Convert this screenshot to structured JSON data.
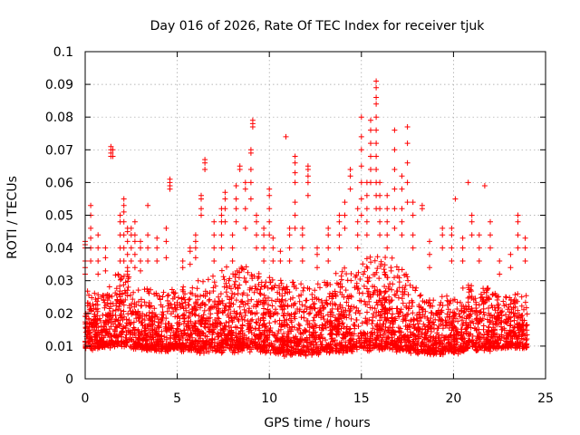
{
  "chart_data": {
    "type": "scatter",
    "title": "Day 016 of 2026, Rate Of TEC Index for receiver tjuk",
    "xlabel": "GPS time / hours",
    "ylabel": "ROTI / TECUs",
    "xlim": [
      0,
      25
    ],
    "ylim": [
      0,
      0.1
    ],
    "x_ticks": [
      0,
      5,
      10,
      15,
      20,
      25
    ],
    "x_tick_labels": [
      "0",
      "5",
      "10",
      "15",
      "20",
      "25"
    ],
    "y_ticks": [
      0,
      0.01,
      0.02,
      0.03,
      0.04,
      0.05,
      0.06,
      0.07,
      0.08,
      0.09,
      0.1
    ],
    "y_tick_labels": [
      "0",
      "0.01",
      "0.02",
      "0.03",
      "0.04",
      "0.05",
      "0.06",
      "0.07",
      "0.08",
      "0.09",
      "0.1"
    ],
    "grid": true,
    "marker": "+",
    "series_color": "#ff0000",
    "dense_band": [
      {
        "t": 0,
        "low": 0.007,
        "high": 0.028
      },
      {
        "t": 1,
        "low": 0.008,
        "high": 0.026
      },
      {
        "t": 2,
        "low": 0.008,
        "high": 0.035
      },
      {
        "t": 3,
        "low": 0.007,
        "high": 0.03
      },
      {
        "t": 4,
        "low": 0.007,
        "high": 0.026
      },
      {
        "t": 5,
        "low": 0.007,
        "high": 0.028
      },
      {
        "t": 6,
        "low": 0.006,
        "high": 0.03
      },
      {
        "t": 7,
        "low": 0.006,
        "high": 0.033
      },
      {
        "t": 8,
        "low": 0.006,
        "high": 0.035
      },
      {
        "t": 9,
        "low": 0.006,
        "high": 0.034
      },
      {
        "t": 10,
        "low": 0.006,
        "high": 0.032
      },
      {
        "t": 11,
        "low": 0.005,
        "high": 0.03
      },
      {
        "t": 12,
        "low": 0.005,
        "high": 0.03
      },
      {
        "t": 13,
        "low": 0.006,
        "high": 0.03
      },
      {
        "t": 14,
        "low": 0.006,
        "high": 0.034
      },
      {
        "t": 15,
        "low": 0.006,
        "high": 0.036
      },
      {
        "t": 16,
        "low": 0.006,
        "high": 0.04
      },
      {
        "t": 17,
        "low": 0.006,
        "high": 0.036
      },
      {
        "t": 18,
        "low": 0.006,
        "high": 0.028
      },
      {
        "t": 19,
        "low": 0.006,
        "high": 0.026
      },
      {
        "t": 20,
        "low": 0.006,
        "high": 0.026
      },
      {
        "t": 21,
        "low": 0.007,
        "high": 0.03
      },
      {
        "t": 22,
        "low": 0.007,
        "high": 0.028
      },
      {
        "t": 23,
        "low": 0.008,
        "high": 0.026
      },
      {
        "t": 24,
        "low": 0.008,
        "high": 0.026
      }
    ],
    "band_points_per_hour": 190,
    "spikes": [
      {
        "x": 0.0,
        "ys": [
          0.032,
          0.034,
          0.036,
          0.04,
          0.041,
          0.042
        ]
      },
      {
        "x": 0.3,
        "ys": [
          0.036,
          0.04,
          0.043,
          0.046,
          0.05,
          0.053
        ]
      },
      {
        "x": 0.7,
        "ys": [
          0.032,
          0.036,
          0.04,
          0.044
        ]
      },
      {
        "x": 1.1,
        "ys": [
          0.033,
          0.037,
          0.04
        ]
      },
      {
        "x": 1.4,
        "ys": [
          0.068,
          0.069,
          0.07,
          0.071
        ]
      },
      {
        "x": 1.5,
        "ys": [
          0.068,
          0.07
        ]
      },
      {
        "x": 1.9,
        "ys": [
          0.036,
          0.04,
          0.044,
          0.048,
          0.05
        ]
      },
      {
        "x": 2.1,
        "ys": [
          0.036,
          0.04,
          0.044,
          0.048,
          0.051,
          0.053,
          0.055
        ]
      },
      {
        "x": 2.3,
        "ys": [
          0.034,
          0.038,
          0.042,
          0.045,
          0.046
        ]
      },
      {
        "x": 2.5,
        "ys": [
          0.036,
          0.04,
          0.044,
          0.046
        ]
      },
      {
        "x": 2.7,
        "ys": [
          0.034,
          0.038,
          0.042,
          0.044,
          0.048
        ]
      },
      {
        "x": 3.0,
        "ys": [
          0.033,
          0.036,
          0.04,
          0.042
        ]
      },
      {
        "x": 3.4,
        "ys": [
          0.036,
          0.04,
          0.044,
          0.053
        ]
      },
      {
        "x": 3.9,
        "ys": [
          0.036,
          0.04,
          0.043
        ]
      },
      {
        "x": 4.4,
        "ys": [
          0.037,
          0.042,
          0.046
        ]
      },
      {
        "x": 4.6,
        "ys": [
          0.058,
          0.059,
          0.06,
          0.061
        ]
      },
      {
        "x": 5.3,
        "ys": [
          0.034,
          0.036
        ]
      },
      {
        "x": 5.7,
        "ys": [
          0.035,
          0.039,
          0.04
        ]
      },
      {
        "x": 6.0,
        "ys": [
          0.037,
          0.04,
          0.042,
          0.044
        ]
      },
      {
        "x": 6.3,
        "ys": [
          0.05,
          0.052,
          0.055,
          0.056
        ]
      },
      {
        "x": 6.5,
        "ys": [
          0.064,
          0.066,
          0.067
        ]
      },
      {
        "x": 7.0,
        "ys": [
          0.036,
          0.04,
          0.044,
          0.048
        ]
      },
      {
        "x": 7.4,
        "ys": [
          0.04,
          0.044,
          0.048,
          0.05,
          0.052
        ]
      },
      {
        "x": 7.6,
        "ys": [
          0.048,
          0.052,
          0.055,
          0.057
        ]
      },
      {
        "x": 8.0,
        "ys": [
          0.036,
          0.04,
          0.044
        ]
      },
      {
        "x": 8.2,
        "ys": [
          0.048,
          0.052,
          0.055,
          0.059
        ]
      },
      {
        "x": 8.4,
        "ys": [
          0.064,
          0.065
        ]
      },
      {
        "x": 8.7,
        "ys": [
          0.046,
          0.052,
          0.058,
          0.06
        ]
      },
      {
        "x": 9.0,
        "ys": [
          0.055,
          0.06,
          0.064,
          0.069,
          0.07
        ]
      },
      {
        "x": 9.1,
        "ys": [
          0.077,
          0.078,
          0.079
        ]
      },
      {
        "x": 9.3,
        "ys": [
          0.04,
          0.044,
          0.048,
          0.05
        ]
      },
      {
        "x": 9.7,
        "ys": [
          0.036,
          0.04,
          0.044,
          0.046
        ]
      },
      {
        "x": 10.0,
        "ys": [
          0.044,
          0.048,
          0.052,
          0.056,
          0.058
        ]
      },
      {
        "x": 10.2,
        "ys": [
          0.036,
          0.04,
          0.043
        ]
      },
      {
        "x": 10.6,
        "ys": [
          0.036,
          0.039
        ]
      },
      {
        "x": 10.9,
        "ys": [
          0.074
        ]
      },
      {
        "x": 11.1,
        "ys": [
          0.036,
          0.04,
          0.044,
          0.046
        ]
      },
      {
        "x": 11.4,
        "ys": [
          0.046,
          0.05,
          0.054,
          0.06,
          0.063,
          0.066,
          0.068
        ]
      },
      {
        "x": 11.8,
        "ys": [
          0.036,
          0.04,
          0.044,
          0.046
        ]
      },
      {
        "x": 12.1,
        "ys": [
          0.056,
          0.06,
          0.062,
          0.064,
          0.065
        ]
      },
      {
        "x": 12.6,
        "ys": [
          0.034,
          0.038,
          0.04
        ]
      },
      {
        "x": 13.2,
        "ys": [
          0.036,
          0.04,
          0.044,
          0.046
        ]
      },
      {
        "x": 13.8,
        "ys": [
          0.04,
          0.044,
          0.048,
          0.05
        ]
      },
      {
        "x": 14.1,
        "ys": [
          0.046,
          0.05,
          0.054
        ]
      },
      {
        "x": 14.4,
        "ys": [
          0.058,
          0.062,
          0.064
        ]
      },
      {
        "x": 14.8,
        "ys": [
          0.04,
          0.044,
          0.048,
          0.052
        ]
      },
      {
        "x": 15.0,
        "ys": [
          0.05,
          0.055,
          0.06,
          0.065,
          0.07,
          0.074,
          0.08
        ]
      },
      {
        "x": 15.3,
        "ys": [
          0.044,
          0.048,
          0.052,
          0.056,
          0.06
        ]
      },
      {
        "x": 15.5,
        "ys": [
          0.06,
          0.064,
          0.068,
          0.072,
          0.076,
          0.079
        ]
      },
      {
        "x": 15.8,
        "ys": [
          0.052,
          0.056,
          0.06,
          0.064,
          0.068,
          0.072,
          0.076,
          0.08,
          0.084,
          0.086,
          0.089,
          0.091
        ]
      },
      {
        "x": 16.0,
        "ys": [
          0.044,
          0.048,
          0.052,
          0.056,
          0.06
        ]
      },
      {
        "x": 16.4,
        "ys": [
          0.04,
          0.044,
          0.048,
          0.052,
          0.056
        ]
      },
      {
        "x": 16.8,
        "ys": [
          0.046,
          0.052,
          0.058,
          0.064,
          0.07,
          0.076
        ]
      },
      {
        "x": 17.2,
        "ys": [
          0.044,
          0.048,
          0.052,
          0.058,
          0.062
        ]
      },
      {
        "x": 17.5,
        "ys": [
          0.054,
          0.06,
          0.066,
          0.072,
          0.077
        ]
      },
      {
        "x": 17.8,
        "ys": [
          0.04,
          0.044,
          0.05,
          0.054
        ]
      },
      {
        "x": 18.3,
        "ys": [
          0.052,
          0.053
        ]
      },
      {
        "x": 18.7,
        "ys": [
          0.034,
          0.038,
          0.042
        ]
      },
      {
        "x": 19.4,
        "ys": [
          0.04,
          0.044,
          0.046
        ]
      },
      {
        "x": 19.9,
        "ys": [
          0.036,
          0.04,
          0.044,
          0.046
        ]
      },
      {
        "x": 20.1,
        "ys": [
          0.055
        ]
      },
      {
        "x": 20.5,
        "ys": [
          0.036,
          0.04,
          0.043
        ]
      },
      {
        "x": 20.8,
        "ys": [
          0.06
        ]
      },
      {
        "x": 21.0,
        "ys": [
          0.044,
          0.048,
          0.05
        ]
      },
      {
        "x": 21.4,
        "ys": [
          0.036,
          0.04,
          0.044
        ]
      },
      {
        "x": 21.7,
        "ys": [
          0.059
        ]
      },
      {
        "x": 22.0,
        "ys": [
          0.04,
          0.044,
          0.048
        ]
      },
      {
        "x": 22.5,
        "ys": [
          0.032,
          0.036
        ]
      },
      {
        "x": 23.1,
        "ys": [
          0.034,
          0.038
        ]
      },
      {
        "x": 23.5,
        "ys": [
          0.04,
          0.044,
          0.048,
          0.05
        ]
      },
      {
        "x": 23.9,
        "ys": [
          0.036,
          0.04,
          0.043
        ]
      }
    ]
  }
}
